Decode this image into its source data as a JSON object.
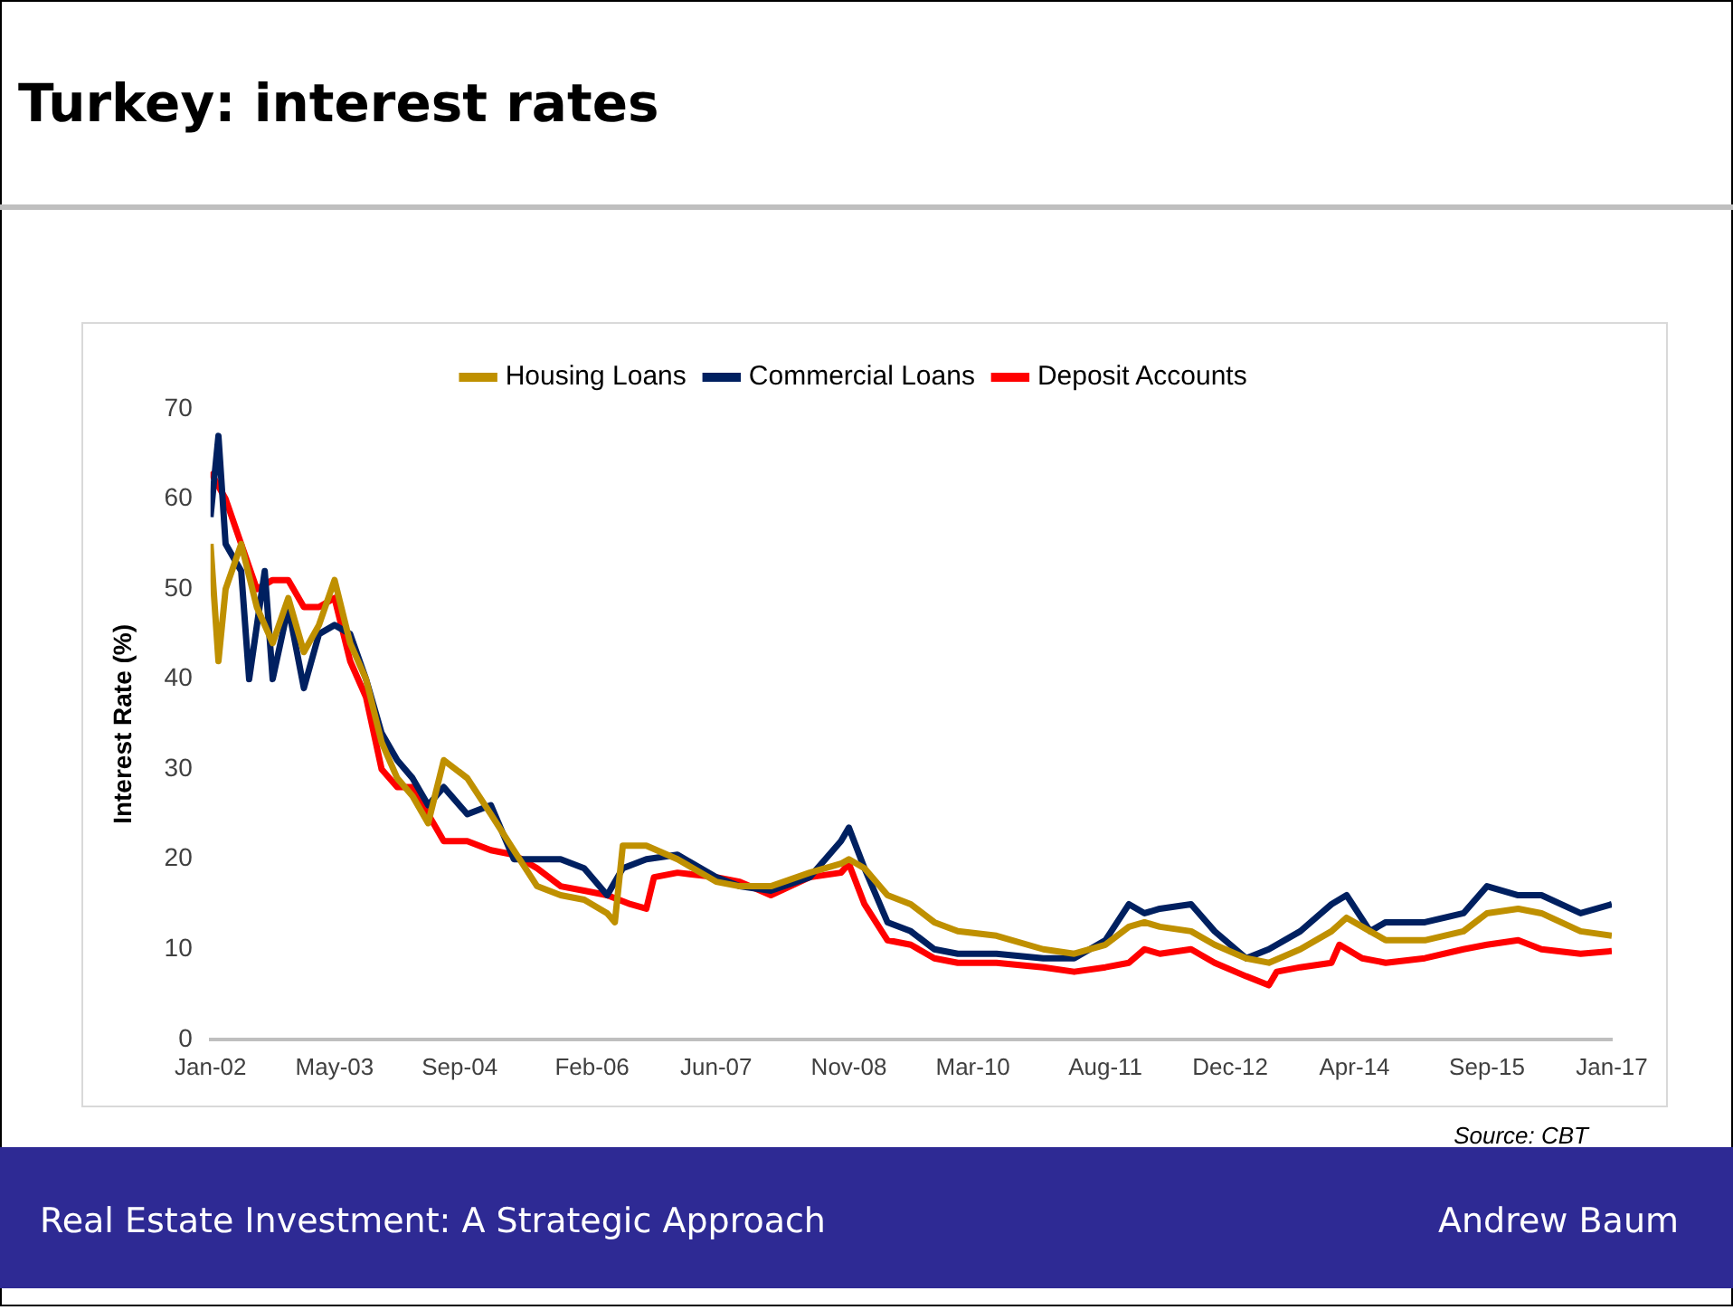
{
  "chart_data": {
    "type": "line",
    "title": "Turkey: interest rates",
    "ylabel": "Interest Rate (%)",
    "xlim": [
      "2002-01",
      "2017-01"
    ],
    "xticks": [
      {
        "value": "2002-01",
        "label": "Jan-02"
      },
      {
        "value": "2003-05",
        "label": "May-03"
      },
      {
        "value": "2004-09",
        "label": "Sep-04"
      },
      {
        "value": "2006-02",
        "label": "Feb-06"
      },
      {
        "value": "2007-06",
        "label": "Jun-07"
      },
      {
        "value": "2008-11",
        "label": "Nov-08"
      },
      {
        "value": "2010-03",
        "label": "Mar-10"
      },
      {
        "value": "2011-08",
        "label": "Aug-11"
      },
      {
        "value": "2012-12",
        "label": "Dec-12"
      },
      {
        "value": "2014-04",
        "label": "Apr-14"
      },
      {
        "value": "2015-09",
        "label": "Sep-15"
      },
      {
        "value": "2017-01",
        "label": "Jan-17"
      }
    ],
    "ylim": [
      0,
      70
    ],
    "yticks": [
      0,
      10,
      20,
      30,
      40,
      50,
      60,
      70
    ],
    "grid": false,
    "legend": "top",
    "marker": "none",
    "line_style": "solid",
    "series": [
      {
        "name": "Housing Loans",
        "color": "#bf9000",
        "x": [
          "2002-01",
          "2002-02",
          "2002-03",
          "2002-05",
          "2002-07",
          "2002-09",
          "2002-11",
          "2003-01",
          "2003-03",
          "2003-05",
          "2003-07",
          "2003-09",
          "2003-11",
          "2004-01",
          "2004-03",
          "2004-05",
          "2004-07",
          "2004-10",
          "2005-01",
          "2005-04",
          "2005-07",
          "2005-10",
          "2006-01",
          "2006-04",
          "2006-05",
          "2006-06",
          "2006-09",
          "2007-01",
          "2007-06",
          "2007-09",
          "2008-01",
          "2008-06",
          "2008-10",
          "2008-11",
          "2009-01",
          "2009-04",
          "2009-07",
          "2009-10",
          "2010-01",
          "2010-06",
          "2010-12",
          "2011-04",
          "2011-08",
          "2011-11",
          "2012-01",
          "2012-03",
          "2012-07",
          "2012-10",
          "2013-02",
          "2013-05",
          "2013-09",
          "2014-01",
          "2014-03",
          "2014-06",
          "2014-08",
          "2015-01",
          "2015-06",
          "2015-09",
          "2016-01",
          "2016-04",
          "2016-09",
          "2017-01"
        ],
        "values": [
          55,
          42,
          50,
          55,
          48,
          44,
          49,
          43,
          46,
          51,
          44,
          40,
          33,
          29,
          27,
          24,
          31,
          29,
          25,
          21,
          17,
          16,
          15.5,
          14,
          13,
          21.5,
          21.5,
          20,
          17.5,
          17,
          17,
          18.5,
          19.5,
          20,
          19,
          16,
          15,
          13,
          12,
          11.5,
          10,
          9.5,
          10.5,
          12.5,
          13,
          12.5,
          12,
          10.5,
          9,
          8.5,
          10,
          12,
          13.5,
          12,
          11,
          11,
          12,
          14,
          14.5,
          14,
          12,
          11.5
        ]
      },
      {
        "name": "Commercial Loans",
        "color": "#002060",
        "x": [
          "2002-01",
          "2002-02",
          "2002-03",
          "2002-05",
          "2002-06",
          "2002-08",
          "2002-09",
          "2002-11",
          "2003-01",
          "2003-03",
          "2003-05",
          "2003-07",
          "2003-09",
          "2003-11",
          "2004-01",
          "2004-03",
          "2004-05",
          "2004-07",
          "2004-10",
          "2005-01",
          "2005-04",
          "2005-07",
          "2005-10",
          "2006-01",
          "2006-04",
          "2006-06",
          "2006-09",
          "2007-01",
          "2007-06",
          "2007-09",
          "2008-01",
          "2008-06",
          "2008-10",
          "2008-11",
          "2009-01",
          "2009-04",
          "2009-07",
          "2009-10",
          "2010-01",
          "2010-06",
          "2010-12",
          "2011-04",
          "2011-08",
          "2011-11",
          "2012-01",
          "2012-03",
          "2012-07",
          "2012-10",
          "2013-02",
          "2013-05",
          "2013-09",
          "2014-01",
          "2014-03",
          "2014-06",
          "2014-08",
          "2015-01",
          "2015-06",
          "2015-09",
          "2016-01",
          "2016-04",
          "2016-09",
          "2017-01"
        ],
        "values": [
          58,
          67,
          55,
          52,
          40,
          52,
          40,
          48,
          39,
          45,
          46,
          45,
          40,
          34,
          31,
          29,
          26,
          28,
          25,
          26,
          20,
          20,
          20,
          19,
          16,
          19,
          20,
          20.5,
          18,
          17,
          16.5,
          18,
          22,
          23.5,
          19,
          13,
          12,
          10,
          9.5,
          9.5,
          9,
          9,
          11,
          15,
          14,
          14.5,
          15,
          12,
          9,
          10,
          12,
          15,
          16,
          12,
          13,
          13,
          14,
          17,
          16,
          16,
          14,
          15
        ]
      },
      {
        "name": "Deposit Accounts",
        "color": "#ff0000",
        "x": [
          "2002-01",
          "2002-03",
          "2002-05",
          "2002-07",
          "2002-09",
          "2002-11",
          "2003-01",
          "2003-03",
          "2003-05",
          "2003-07",
          "2003-09",
          "2003-11",
          "2004-01",
          "2004-03",
          "2004-05",
          "2004-07",
          "2004-10",
          "2005-01",
          "2005-04",
          "2005-07",
          "2005-10",
          "2006-01",
          "2006-04",
          "2006-07",
          "2006-09",
          "2006-10",
          "2007-01",
          "2007-06",
          "2007-09",
          "2008-01",
          "2008-06",
          "2008-10",
          "2008-11",
          "2009-01",
          "2009-04",
          "2009-07",
          "2009-10",
          "2010-01",
          "2010-06",
          "2010-12",
          "2011-04",
          "2011-08",
          "2011-11",
          "2012-01",
          "2012-03",
          "2012-07",
          "2012-10",
          "2013-02",
          "2013-05",
          "2013-06",
          "2013-09",
          "2014-01",
          "2014-02",
          "2014-05",
          "2014-08",
          "2015-01",
          "2015-06",
          "2015-09",
          "2016-01",
          "2016-04",
          "2016-09",
          "2017-01"
        ],
        "values": [
          63,
          60,
          55,
          50,
          51,
          51,
          48,
          48,
          49,
          42,
          38,
          30,
          28,
          28,
          25,
          22,
          22,
          21,
          20.5,
          19,
          17,
          16.5,
          16,
          15,
          14.5,
          18,
          18.5,
          18,
          17.5,
          16,
          18,
          18.5,
          19.5,
          15,
          11,
          10.5,
          9,
          8.5,
          8.5,
          8,
          7.5,
          8,
          8.5,
          10,
          9.5,
          10,
          8.5,
          7,
          6,
          7.5,
          8,
          8.5,
          10.5,
          9,
          8.5,
          9,
          10,
          10.5,
          11,
          10,
          9.5,
          9.8
        ]
      }
    ],
    "annotations": [
      "Source: CBT",
      "Real Estate Investment: A Strategic Approach",
      "Andrew Baum"
    ]
  }
}
